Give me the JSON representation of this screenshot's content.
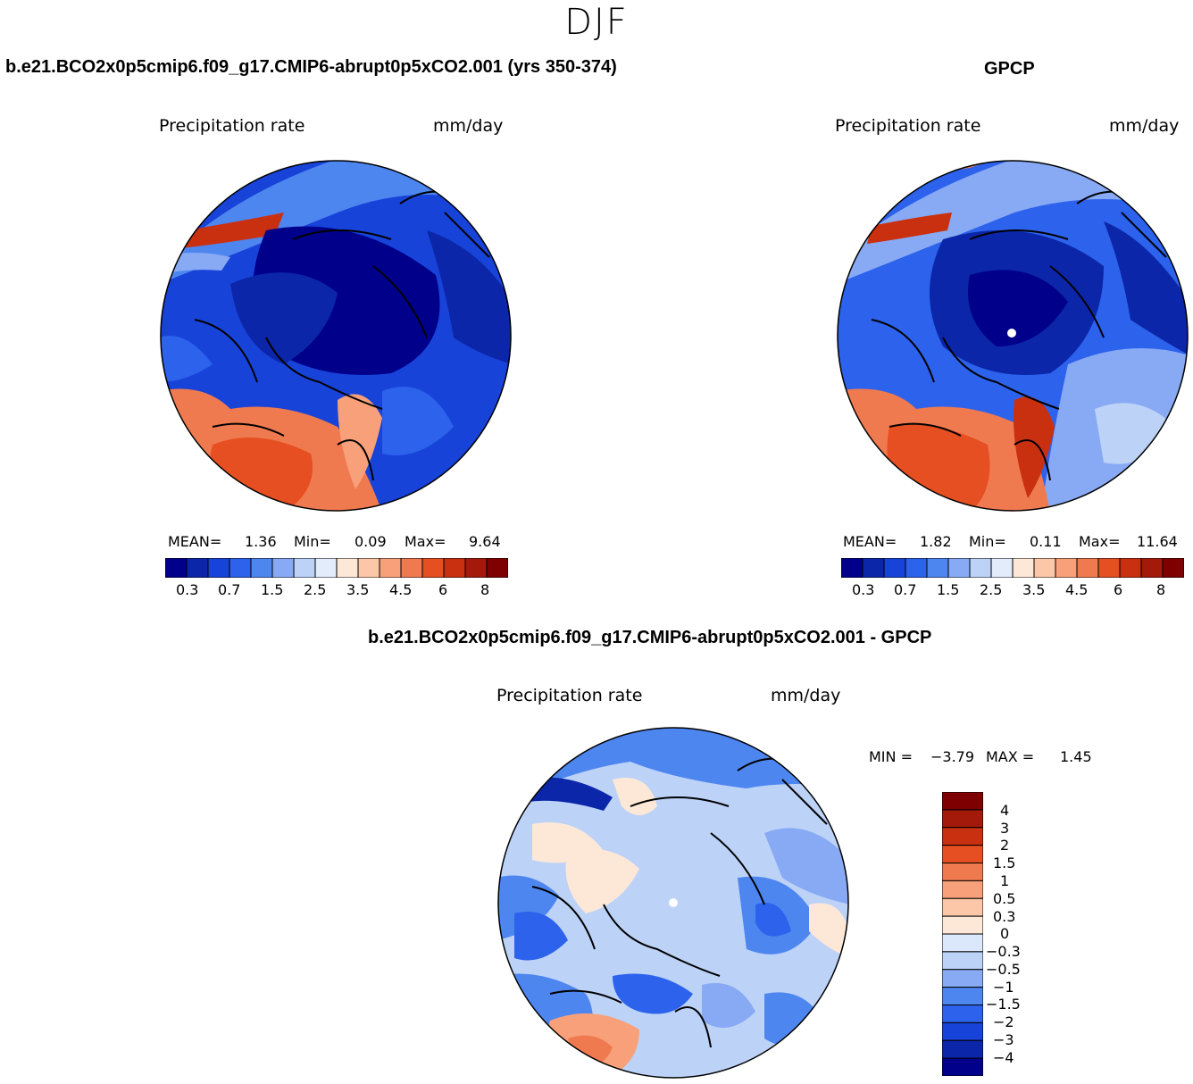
{
  "season": "DJF",
  "palette_abs": [
    "#00008b",
    "#0b26a8",
    "#1843d8",
    "#2c62ec",
    "#4e86f0",
    "#88aaf4",
    "#bcd2f7",
    "#e2ecfb",
    "#fde8d8",
    "#fcc6a8",
    "#f8a07a",
    "#f07a50",
    "#e54f21",
    "#c9300f",
    "#a31a0b",
    "#7f0000"
  ],
  "palette_diff": [
    "#00008b",
    "#0b26a8",
    "#1843d8",
    "#2c62ec",
    "#4e86f0",
    "#88aaf4",
    "#bcd2f7",
    "#dbe8fb",
    "#fde8d8",
    "#fcc6a8",
    "#f8a07a",
    "#f07a50",
    "#e54f21",
    "#c9300f",
    "#a31a0b",
    "#7f0000"
  ],
  "panels": {
    "model": {
      "title": "b.e21.BCO2x0p5cmip6.f09_g17.CMIP6-abrupt0p5xCO2.001 (yrs 350-374)",
      "variable": "Precipitation rate",
      "units": "mm/day",
      "stats": {
        "mean_label": "MEAN=",
        "mean": "1.36",
        "min_label": "Min=",
        "min": "0.09",
        "max_label": "Max=",
        "max": "9.64"
      },
      "ticks": [
        "0.3",
        "0.7",
        "1.5",
        "2.5",
        "3.5",
        "4.5",
        "6",
        "8"
      ]
    },
    "obs": {
      "title": "GPCP",
      "variable": "Precipitation rate",
      "units": "mm/day",
      "stats": {
        "mean_label": "MEAN=",
        "mean": "1.82",
        "min_label": "Min=",
        "min": "0.11",
        "max_label": "Max=",
        "max": "11.64"
      },
      "ticks": [
        "0.3",
        "0.7",
        "1.5",
        "2.5",
        "3.5",
        "4.5",
        "6",
        "8"
      ]
    },
    "diff": {
      "title": "b.e21.BCO2x0p5cmip6.f09_g17.CMIP6-abrupt0p5xCO2.001 - GPCP",
      "variable": "Precipitation rate",
      "units": "mm/day",
      "minmax": {
        "min_label": "MIN =",
        "min": "−3.79",
        "max_label": "MAX =",
        "max": "1.45"
      },
      "ticks": [
        "4",
        "3",
        "2",
        "1.5",
        "1",
        "0.5",
        "0.3",
        "0",
        "−0.3",
        "−0.5",
        "−1",
        "−1.5",
        "−2",
        "−3",
        "−4"
      ]
    }
  },
  "chart_data": [
    {
      "type": "heatmap",
      "title": "b.e21.BCO2x0p5cmip6.f09_g17.CMIP6-abrupt0p5xCO2.001 (yrs 350-374)",
      "projection": "polar stereographic (north pole)",
      "variable": "Precipitation rate",
      "units": "mm/day",
      "mean": 1.36,
      "min": 0.09,
      "max": 9.64,
      "colorbar_levels": [
        0.3,
        0.7,
        1.5,
        2.5,
        3.5,
        4.5,
        6,
        8
      ]
    },
    {
      "type": "heatmap",
      "title": "GPCP",
      "projection": "polar stereographic (north pole)",
      "variable": "Precipitation rate",
      "units": "mm/day",
      "mean": 1.82,
      "min": 0.11,
      "max": 11.64,
      "colorbar_levels": [
        0.3,
        0.7,
        1.5,
        2.5,
        3.5,
        4.5,
        6,
        8
      ]
    },
    {
      "type": "heatmap",
      "title": "b.e21.BCO2x0p5cmip6.f09_g17.CMIP6-abrupt0p5xCO2.001 - GPCP",
      "projection": "polar stereographic (north pole)",
      "variable": "Precipitation rate",
      "units": "mm/day",
      "min": -3.79,
      "max": 1.45,
      "colorbar_levels": [
        4,
        3,
        2,
        1.5,
        1,
        0.5,
        0.3,
        0,
        -0.3,
        -0.5,
        -1,
        -1.5,
        -2,
        -3,
        -4
      ]
    }
  ]
}
